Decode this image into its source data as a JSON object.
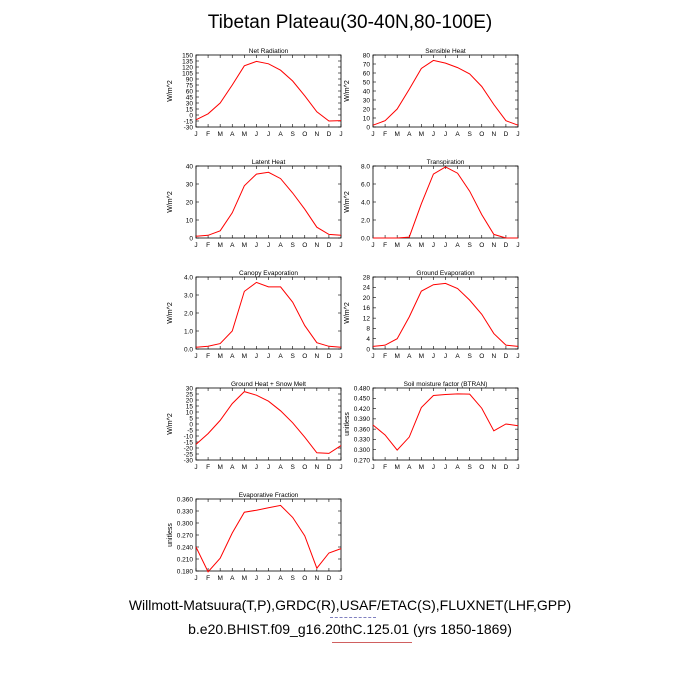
{
  "title": "Tibetan Plateau(30-40N,80-100E)",
  "footer": {
    "line1": "Willmott-Matsuura(T,P),GRDC(R),USAF/ETAC(S),FLUXNET(LHF,GPP)",
    "line2": "b.e20.BHIST.f09_g16.20thC.125.01 (yrs 1850-1869)"
  },
  "colors": {
    "series": "#ff0000",
    "axis": "#000000"
  },
  "chart_data": [
    {
      "type": "line",
      "title": "Net Radiation",
      "ylabel": "W/m^2",
      "ylim": [
        -30,
        150
      ],
      "yticks": [
        "-30",
        "-15",
        "0",
        "15",
        "30",
        "45",
        "60",
        "75",
        "90",
        "105",
        "120",
        "135",
        "150"
      ],
      "x": [
        "J",
        "F",
        "M",
        "A",
        "M",
        "J",
        "J",
        "A",
        "S",
        "O",
        "N",
        "D",
        "J"
      ],
      "values": [
        -12,
        3,
        30,
        75,
        123,
        134,
        128,
        112,
        85,
        48,
        8,
        -15,
        -14
      ]
    },
    {
      "type": "line",
      "title": "Sensible Heat",
      "ylabel": "W/m^2",
      "ylim": [
        0,
        80
      ],
      "yticks": [
        "0",
        "10",
        "20",
        "30",
        "40",
        "50",
        "60",
        "70",
        "80"
      ],
      "x": [
        "J",
        "F",
        "M",
        "A",
        "M",
        "J",
        "J",
        "A",
        "S",
        "O",
        "N",
        "D",
        "J"
      ],
      "values": [
        2,
        7,
        20,
        42,
        65,
        74,
        71,
        66,
        59,
        45,
        25,
        7,
        2
      ]
    },
    {
      "type": "line",
      "title": "Latent Heat",
      "ylabel": "W/m^2",
      "ylim": [
        0,
        40
      ],
      "yticks": [
        "0",
        "10",
        "20",
        "30",
        "40"
      ],
      "x": [
        "J",
        "F",
        "M",
        "A",
        "M",
        "J",
        "J",
        "A",
        "S",
        "O",
        "N",
        "D",
        "J"
      ],
      "values": [
        1,
        1.5,
        4,
        14,
        29,
        35.5,
        36.5,
        33,
        25,
        16,
        6,
        2,
        1.5
      ]
    },
    {
      "type": "line",
      "title": "Transpiration",
      "ylabel": "W/m^2",
      "ylim": [
        0,
        8
      ],
      "yticks": [
        "0.0",
        "2.0",
        "4.0",
        "6.0",
        "8.0"
      ],
      "x": [
        "J",
        "F",
        "M",
        "A",
        "M",
        "J",
        "J",
        "A",
        "S",
        "O",
        "N",
        "D",
        "J"
      ],
      "values": [
        0,
        0,
        0,
        0.1,
        3.8,
        7.1,
        7.9,
        7.2,
        5.2,
        2.6,
        0.4,
        0,
        0
      ]
    },
    {
      "type": "line",
      "title": "Canopy Evaporation",
      "ylabel": "W/m^2",
      "ylim": [
        0,
        4
      ],
      "yticks": [
        "0.0",
        "1.0",
        "2.0",
        "3.0",
        "4.0"
      ],
      "x": [
        "J",
        "F",
        "M",
        "A",
        "M",
        "J",
        "J",
        "A",
        "S",
        "O",
        "N",
        "D",
        "J"
      ],
      "values": [
        0.1,
        0.15,
        0.3,
        1.0,
        3.2,
        3.7,
        3.45,
        3.45,
        2.6,
        1.3,
        0.35,
        0.15,
        0.1
      ]
    },
    {
      "type": "line",
      "title": "Ground Evaporation",
      "ylabel": "W/m^2",
      "ylim": [
        0,
        28
      ],
      "yticks": [
        "0",
        "4",
        "8",
        "12",
        "16",
        "20",
        "24",
        "28"
      ],
      "x": [
        "J",
        "F",
        "M",
        "A",
        "M",
        "J",
        "J",
        "A",
        "S",
        "O",
        "N",
        "D",
        "J"
      ],
      "values": [
        1,
        1.5,
        4,
        12.5,
        22.5,
        25,
        25.5,
        23.5,
        19,
        13.5,
        6,
        1.5,
        1
      ]
    },
    {
      "type": "line",
      "title": "Ground Heat + Snow Melt",
      "ylabel": "W/m^2",
      "ylim": [
        -30,
        30
      ],
      "yticks": [
        "-30",
        "-25",
        "-20",
        "-15",
        "-10",
        "-5",
        "0",
        "5",
        "10",
        "15",
        "20",
        "25",
        "30"
      ],
      "x": [
        "J",
        "F",
        "M",
        "A",
        "M",
        "J",
        "J",
        "A",
        "S",
        "O",
        "N",
        "D",
        "J"
      ],
      "values": [
        -17,
        -8,
        3,
        17,
        27,
        24,
        19,
        11,
        1,
        -11,
        -24,
        -24.5,
        -18
      ]
    },
    {
      "type": "line",
      "title": "Soil moisture factor (BTRAN)",
      "ylabel": "unitless",
      "ylim": [
        0.27,
        0.48
      ],
      "yticks": [
        "0.270",
        "0.300",
        "0.330",
        "0.360",
        "0.390",
        "0.420",
        "0.450",
        "0.480"
      ],
      "x": [
        "J",
        "F",
        "M",
        "A",
        "M",
        "J",
        "J",
        "A",
        "S",
        "O",
        "N",
        "D",
        "J"
      ],
      "values": [
        0.372,
        0.343,
        0.299,
        0.337,
        0.423,
        0.458,
        0.461,
        0.463,
        0.462,
        0.421,
        0.355,
        0.375,
        0.37
      ]
    },
    {
      "type": "line",
      "title": "Evaporative Fraction",
      "ylabel": "unitless",
      "ylim": [
        0.18,
        0.36
      ],
      "yticks": [
        "0.180",
        "0.210",
        "0.240",
        "0.270",
        "0.300",
        "0.330",
        "0.360"
      ],
      "x": [
        "J",
        "F",
        "M",
        "A",
        "M",
        "J",
        "J",
        "A",
        "S",
        "O",
        "N",
        "D",
        "J"
      ],
      "values": [
        0.24,
        0.178,
        0.212,
        0.275,
        0.327,
        0.332,
        0.338,
        0.344,
        0.314,
        0.268,
        0.187,
        0.225,
        0.236
      ]
    }
  ]
}
